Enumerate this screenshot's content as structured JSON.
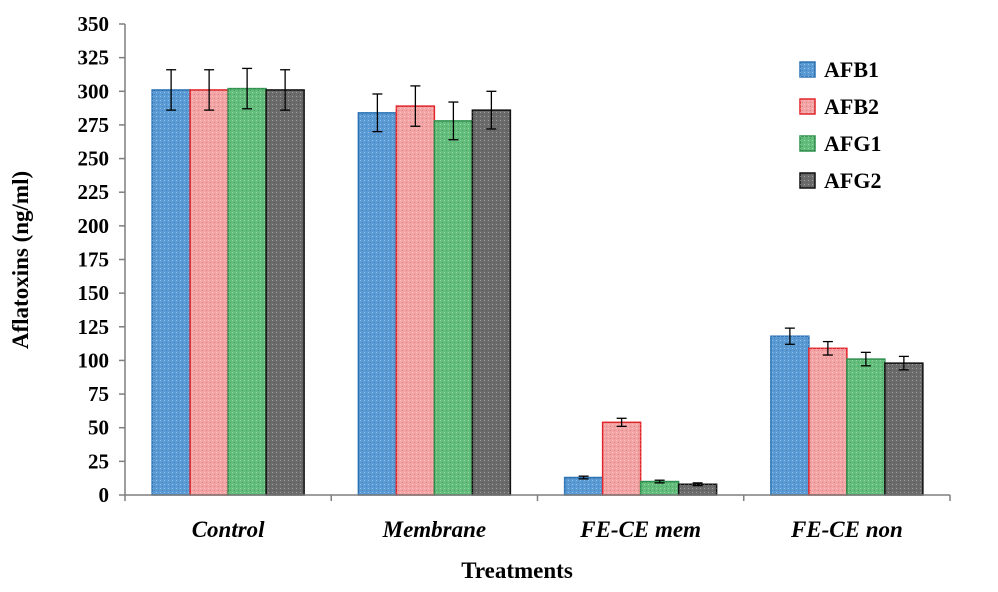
{
  "chart_data": {
    "type": "bar",
    "title": "",
    "xlabel": "Treatments",
    "ylabel": "Aflatoxins (ng/ml)",
    "ylim": [
      0,
      350
    ],
    "yticks": [
      0,
      25,
      50,
      75,
      100,
      125,
      150,
      175,
      200,
      225,
      250,
      275,
      300,
      325,
      350
    ],
    "categories": [
      "Control",
      "Membrane",
      "FE-CE mem",
      "FE-CE non"
    ],
    "legend_position": "top-right",
    "grid": false,
    "series": [
      {
        "name": "AFB1",
        "color": "#5b9bd5",
        "edge": "#2e75b6",
        "values": [
          301,
          284,
          13,
          118
        ],
        "errors": [
          15,
          14,
          1,
          6
        ]
      },
      {
        "name": "AFB2",
        "color": "#f4a4a4",
        "edge": "#e3262b",
        "values": [
          301,
          289,
          54,
          109
        ],
        "errors": [
          15,
          15,
          3,
          5
        ]
      },
      {
        "name": "AFG1",
        "color": "#63be7b",
        "edge": "#2f8f4e",
        "values": [
          302,
          278,
          10,
          101
        ],
        "errors": [
          15,
          14,
          1,
          5
        ]
      },
      {
        "name": "AFG2",
        "color": "#6b6b6b",
        "edge": "#111111",
        "values": [
          301,
          286,
          8,
          98
        ],
        "errors": [
          15,
          14,
          1,
          5
        ]
      }
    ]
  }
}
